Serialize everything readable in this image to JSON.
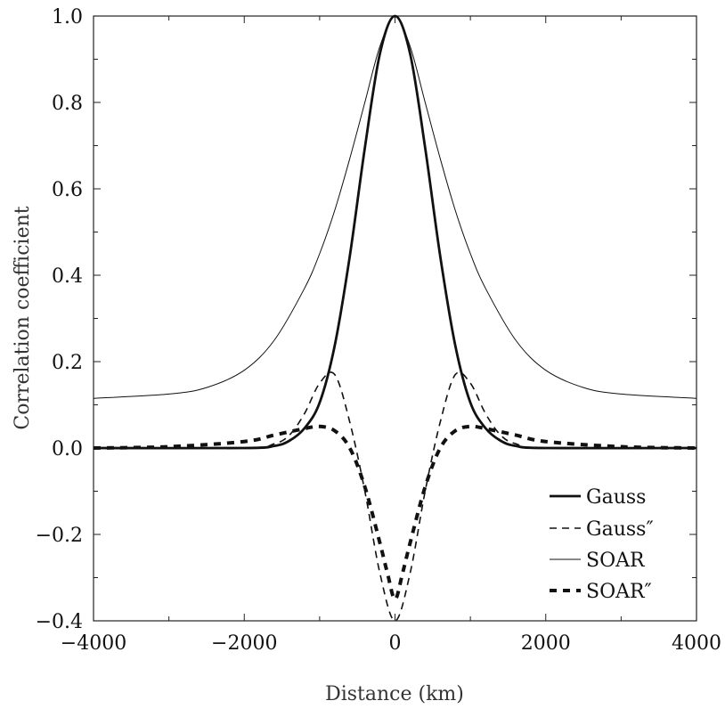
{
  "chart_data": {
    "type": "line",
    "xlabel": "Distance (km)",
    "ylabel": "Correlation coefficient",
    "xlim": [
      -4000,
      4000
    ],
    "ylim": [
      -0.4,
      1.0
    ],
    "x_ticks": [
      -4000,
      -2000,
      0,
      2000,
      4000
    ],
    "x_tick_labels": [
      "−4000",
      "−2000",
      "0",
      "2000",
      "4000"
    ],
    "y_ticks": [
      -0.4,
      -0.2,
      0.0,
      0.2,
      0.4,
      0.6,
      0.8,
      1.0
    ],
    "y_tick_labels": [
      "−0.4",
      "−0.2",
      "0.0",
      "0.2",
      "0.4",
      "0.6",
      "0.8",
      "1.0"
    ],
    "grid": false,
    "legend_position": "lower-right",
    "series": [
      {
        "name": "Gauss",
        "style": "solid-thick",
        "x": [
          -4000,
          -2000,
          -1600,
          -1400,
          -1200,
          -1000,
          -800,
          -600,
          -400,
          -200,
          0,
          200,
          400,
          600,
          800,
          1000,
          1200,
          1400,
          1600,
          2000,
          4000
        ],
        "values": [
          0.0,
          0.0,
          0.005,
          0.017,
          0.046,
          0.105,
          0.237,
          0.444,
          0.695,
          0.913,
          1.0,
          0.913,
          0.695,
          0.444,
          0.237,
          0.105,
          0.046,
          0.017,
          0.005,
          0.0,
          0.0
        ]
      },
      {
        "name": "Gauss″",
        "style": "dashed",
        "x": [
          -4000,
          -2000,
          -1600,
          -1400,
          -1200,
          -1000,
          -800,
          -600,
          -400,
          -200,
          0,
          200,
          400,
          600,
          800,
          1000,
          1200,
          1400,
          1600,
          2000,
          4000
        ],
        "values": [
          0.0,
          0.0,
          0.01,
          0.03,
          0.08,
          0.15,
          0.17,
          0.06,
          -0.1,
          -0.29,
          -0.4,
          -0.29,
          -0.1,
          0.06,
          0.17,
          0.15,
          0.08,
          0.03,
          0.01,
          0.0,
          0.0
        ]
      },
      {
        "name": "SOAR",
        "style": "solid-thin",
        "x": [
          -4000,
          -3000,
          -2500,
          -2000,
          -1600,
          -1200,
          -1000,
          -800,
          -600,
          -400,
          -200,
          0,
          200,
          400,
          600,
          800,
          1000,
          1200,
          1600,
          2000,
          2500,
          3000,
          4000
        ],
        "values": [
          0.115,
          0.125,
          0.14,
          0.18,
          0.25,
          0.37,
          0.45,
          0.55,
          0.67,
          0.8,
          0.93,
          1.0,
          0.93,
          0.8,
          0.67,
          0.55,
          0.45,
          0.37,
          0.25,
          0.18,
          0.14,
          0.125,
          0.115
        ]
      },
      {
        "name": "SOAR″",
        "style": "dashed-thick",
        "x": [
          -4000,
          -3000,
          -2000,
          -1600,
          -1200,
          -1000,
          -800,
          -600,
          -400,
          -200,
          -100,
          0,
          100,
          200,
          400,
          600,
          800,
          1000,
          1200,
          1600,
          2000,
          3000,
          4000
        ],
        "values": [
          0.0,
          0.003,
          0.015,
          0.03,
          0.045,
          0.05,
          0.04,
          0.0,
          -0.09,
          -0.22,
          -0.29,
          -0.35,
          -0.29,
          -0.22,
          -0.09,
          0.0,
          0.04,
          0.05,
          0.045,
          0.03,
          0.015,
          0.003,
          0.0
        ]
      }
    ]
  }
}
